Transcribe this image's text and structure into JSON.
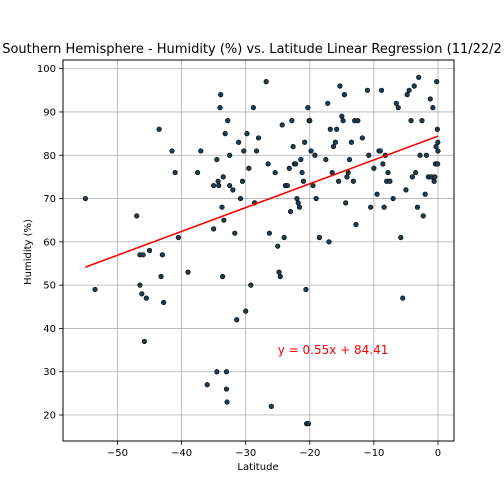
{
  "chart_data": {
    "type": "scatter",
    "title": "Southern Hemisphere - Humidity (%) vs. Latitude Linear Regression (11/22/2",
    "xlabel": "Latitude",
    "ylabel": "Humidity (%)",
    "xlim": [
      -58.5,
      2.5
    ],
    "ylim": [
      14,
      102
    ],
    "xticks": [
      -50,
      -40,
      -30,
      -20,
      -10,
      0
    ],
    "yticks": [
      20,
      30,
      40,
      50,
      60,
      70,
      80,
      90,
      100
    ],
    "grid": true,
    "marker_fill": "#1f3b4d",
    "marker_edge": "#000000",
    "regression": {
      "slope": 0.55,
      "intercept": 84.41,
      "x_range": [
        -55,
        0
      ],
      "color": "#ff0000",
      "equation_label": "y = 0.55x + 84.41",
      "label_at": [
        -25,
        35
      ]
    },
    "points": [
      [
        -55,
        70
      ],
      [
        -53.5,
        49
      ],
      [
        -47,
        66
      ],
      [
        -46.5,
        57
      ],
      [
        -46.5,
        50
      ],
      [
        -46.2,
        48
      ],
      [
        -46,
        57
      ],
      [
        -45.8,
        37
      ],
      [
        -45.5,
        47
      ],
      [
        -45,
        58
      ],
      [
        -43.5,
        86
      ],
      [
        -43.2,
        52
      ],
      [
        -43,
        57
      ],
      [
        -42.8,
        46
      ],
      [
        -41.5,
        81
      ],
      [
        -41,
        76
      ],
      [
        -40.5,
        61
      ],
      [
        -39,
        53
      ],
      [
        -37.5,
        76
      ],
      [
        -37,
        81
      ],
      [
        -36,
        27
      ],
      [
        -35,
        73
      ],
      [
        -35,
        63
      ],
      [
        -34.5,
        79
      ],
      [
        -34.5,
        30
      ],
      [
        -34.3,
        74
      ],
      [
        -34.2,
        73
      ],
      [
        -34,
        91
      ],
      [
        -33.9,
        94
      ],
      [
        -33.7,
        68
      ],
      [
        -33.6,
        52
      ],
      [
        -33.5,
        75
      ],
      [
        -33.4,
        65
      ],
      [
        -33.2,
        85
      ],
      [
        -33,
        30
      ],
      [
        -33,
        26
      ],
      [
        -32.9,
        23
      ],
      [
        -32.8,
        88
      ],
      [
        -32.5,
        80
      ],
      [
        -32.5,
        73
      ],
      [
        -32,
        72
      ],
      [
        -31.7,
        62
      ],
      [
        -31.4,
        42
      ],
      [
        -31.1,
        83
      ],
      [
        -30.8,
        70
      ],
      [
        -30.5,
        74
      ],
      [
        -30.3,
        81
      ],
      [
        -30,
        44
      ],
      [
        -29.8,
        85
      ],
      [
        -29.5,
        77
      ],
      [
        -29.2,
        50
      ],
      [
        -28.8,
        91
      ],
      [
        -28.6,
        69
      ],
      [
        -28.3,
        81
      ],
      [
        -28,
        84
      ],
      [
        -26.8,
        97
      ],
      [
        -26.5,
        78
      ],
      [
        -26.3,
        62
      ],
      [
        -26,
        22
      ],
      [
        -25.4,
        76
      ],
      [
        -25,
        59
      ],
      [
        -24.8,
        53
      ],
      [
        -24.6,
        52
      ],
      [
        -24.3,
        87
      ],
      [
        -24,
        61
      ],
      [
        -23.8,
        73
      ],
      [
        -23.5,
        73
      ],
      [
        -23.2,
        77
      ],
      [
        -23,
        67
      ],
      [
        -22.8,
        88
      ],
      [
        -22.6,
        82
      ],
      [
        -22.4,
        78
      ],
      [
        -22.2,
        78
      ],
      [
        -22,
        70
      ],
      [
        -21.8,
        69
      ],
      [
        -21.6,
        68
      ],
      [
        -21.4,
        79
      ],
      [
        -21.2,
        76
      ],
      [
        -21,
        74
      ],
      [
        -20.8,
        83
      ],
      [
        -20.6,
        49
      ],
      [
        -20.5,
        18
      ],
      [
        -20.3,
        91
      ],
      [
        -20.2,
        18
      ],
      [
        -20.1,
        88
      ],
      [
        -20,
        88
      ],
      [
        -19.8,
        81
      ],
      [
        -19.5,
        73
      ],
      [
        -19.2,
        80
      ],
      [
        -19,
        70
      ],
      [
        -18.5,
        61
      ],
      [
        -17.5,
        79
      ],
      [
        -17.2,
        92
      ],
      [
        -17,
        60
      ],
      [
        -16.8,
        86
      ],
      [
        -16.5,
        76
      ],
      [
        -16.3,
        82
      ],
      [
        -16,
        83
      ],
      [
        -15.8,
        86
      ],
      [
        -15.5,
        74
      ],
      [
        -15.3,
        96
      ],
      [
        -15,
        89
      ],
      [
        -14.8,
        88
      ],
      [
        -14.6,
        94
      ],
      [
        -14.4,
        69
      ],
      [
        -14.2,
        75
      ],
      [
        -14,
        76
      ],
      [
        -13.8,
        79
      ],
      [
        -13.5,
        83
      ],
      [
        -13.2,
        74
      ],
      [
        -13,
        88
      ],
      [
        -12.8,
        64
      ],
      [
        -12.5,
        88
      ],
      [
        -11.8,
        84
      ],
      [
        -11,
        95
      ],
      [
        -10.8,
        80
      ],
      [
        -10.5,
        68
      ],
      [
        -10,
        77
      ],
      [
        -9.5,
        71
      ],
      [
        -9.2,
        81
      ],
      [
        -9,
        81
      ],
      [
        -8.8,
        95
      ],
      [
        -8.6,
        78
      ],
      [
        -8.4,
        68
      ],
      [
        -8.2,
        80
      ],
      [
        -8,
        74
      ],
      [
        -7.8,
        76
      ],
      [
        -7.5,
        74
      ],
      [
        -7,
        70
      ],
      [
        -6.5,
        92
      ],
      [
        -6.2,
        91
      ],
      [
        -5.8,
        61
      ],
      [
        -5.5,
        47
      ],
      [
        -5,
        72
      ],
      [
        -4.8,
        94
      ],
      [
        -4.5,
        95
      ],
      [
        -4.2,
        88
      ],
      [
        -4,
        75
      ],
      [
        -3.7,
        96
      ],
      [
        -3.5,
        76
      ],
      [
        -3.2,
        68
      ],
      [
        -3,
        98
      ],
      [
        -2.8,
        80
      ],
      [
        -2.5,
        88
      ],
      [
        -2.3,
        66
      ],
      [
        -2,
        71
      ],
      [
        -1.8,
        80
      ],
      [
        -1.5,
        75
      ],
      [
        -1.2,
        93
      ],
      [
        -1,
        75
      ],
      [
        -0.8,
        91
      ],
      [
        -0.6,
        74
      ],
      [
        -0.5,
        75
      ],
      [
        -0.4,
        78
      ],
      [
        -0.3,
        82
      ],
      [
        -0.2,
        97
      ],
      [
        -0.1,
        86
      ],
      [
        -0.05,
        78
      ],
      [
        -0.02,
        83
      ],
      [
        0,
        81
      ]
    ]
  }
}
